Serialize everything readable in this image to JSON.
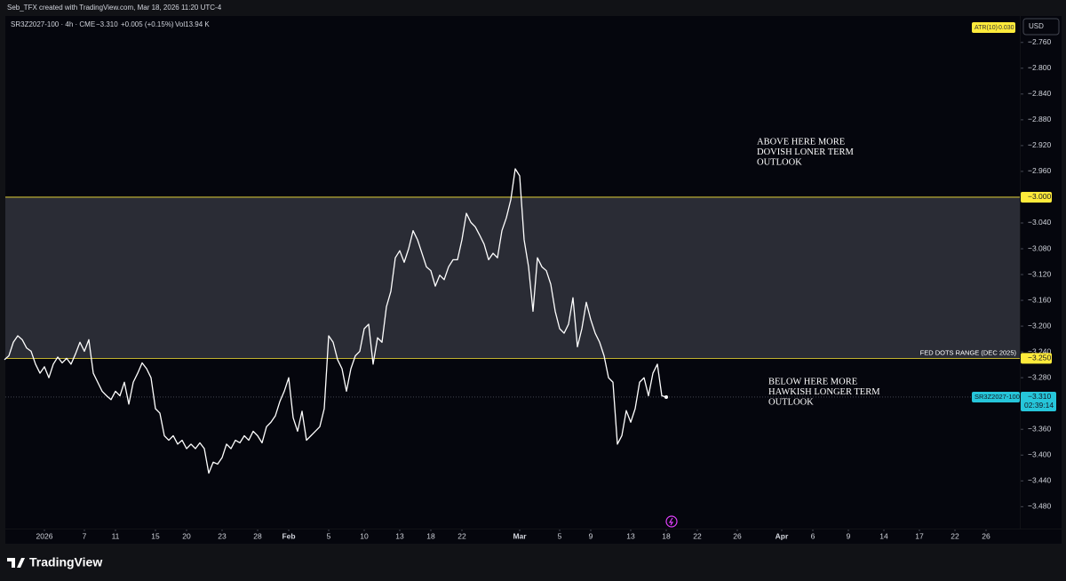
{
  "header": {
    "credit": "Seb_TFX created with TradingView.com, Mar 18, 2026 11:20 UTC-4",
    "brand": "TradingView"
  },
  "chart_data": {
    "type": "line",
    "symbol_info": "SR3Z2027-100 · 4h · CME",
    "last": "−3.310",
    "change": "+0.005 (+0.15%)",
    "volume": "Vol13.94 K",
    "indicator": "ATR(10)",
    "indicator_value": "0.030",
    "currency": "USD",
    "series": [
      {
        "name": "SR3Z2027-100",
        "color": "#ffffff",
        "values": [
          -3.252,
          -3.246,
          -3.225,
          -3.215,
          -3.221,
          -3.234,
          -3.239,
          -3.259,
          -3.273,
          -3.263,
          -3.28,
          -3.259,
          -3.248,
          -3.257,
          -3.25,
          -3.259,
          -3.243,
          -3.225,
          -3.239,
          -3.221,
          -3.273,
          -3.287,
          -3.301,
          -3.308,
          -3.314,
          -3.301,
          -3.308,
          -3.287,
          -3.321,
          -3.287,
          -3.273,
          -3.257,
          -3.266,
          -3.28,
          -3.328,
          -3.335,
          -3.37,
          -3.377,
          -3.37,
          -3.383,
          -3.377,
          -3.39,
          -3.383,
          -3.39,
          -3.381,
          -3.39,
          -3.428,
          -3.411,
          -3.414,
          -3.404,
          -3.383,
          -3.39,
          -3.377,
          -3.381,
          -3.37,
          -3.377,
          -3.363,
          -3.37,
          -3.381,
          -3.356,
          -3.349,
          -3.339,
          -3.317,
          -3.301,
          -3.28,
          -3.342,
          -3.363,
          -3.332,
          -3.377,
          -3.37,
          -3.363,
          -3.356,
          -3.328,
          -3.215,
          -3.225,
          -3.252,
          -3.266,
          -3.301,
          -3.266,
          -3.246,
          -3.239,
          -3.204,
          -3.197,
          -3.259,
          -3.218,
          -3.225,
          -3.17,
          -3.146,
          -3.094,
          -3.083,
          -3.101,
          -3.08,
          -3.052,
          -3.066,
          -3.087,
          -3.108,
          -3.114,
          -3.138,
          -3.121,
          -3.128,
          -3.108,
          -3.097,
          -3.097,
          -3.066,
          -3.025,
          -3.039,
          -3.046,
          -3.059,
          -3.073,
          -3.097,
          -3.087,
          -3.094,
          -3.052,
          -3.032,
          -3.004,
          -2.956,
          -2.967,
          -3.066,
          -3.108,
          -3.177,
          -3.094,
          -3.108,
          -3.114,
          -3.135,
          -3.177,
          -3.204,
          -3.211,
          -3.197,
          -3.156,
          -3.232,
          -3.204,
          -3.163,
          -3.19,
          -3.211,
          -3.225,
          -3.246,
          -3.28,
          -3.287,
          -3.383,
          -3.37,
          -3.331,
          -3.349,
          -3.328,
          -3.287,
          -3.28,
          -3.308,
          -3.273,
          -3.259,
          -3.308,
          -3.31
        ]
      }
    ],
    "current": {
      "value": -3.31,
      "label": "−3.310",
      "countdown": "02:39:14"
    },
    "levels": [
      {
        "value": -3.0,
        "label": "−3.000",
        "color": "#ffeb3b"
      },
      {
        "value": -3.25,
        "label": "−3.250",
        "color": "#ffeb3b",
        "text": "FED DOTS RANGE (DEC 2025)"
      }
    ],
    "band_color": "#2a2c35",
    "annotations": [
      {
        "lines": [
          "ABOVE HERE MORE",
          "DOVISH LONER TERM",
          "OUTLOOK"
        ]
      },
      {
        "lines": [
          "BELOW HERE MORE",
          "HAWKISH LONGER TERM",
          "OUTLOOK"
        ]
      }
    ],
    "xlim": [
      0,
      228.6
    ],
    "xticks": [
      {
        "value": 9,
        "label": "2026"
      },
      {
        "value": 18,
        "label": "7"
      },
      {
        "value": 25,
        "label": "11"
      },
      {
        "value": 34,
        "label": "15"
      },
      {
        "value": 41,
        "label": "20"
      },
      {
        "value": 49,
        "label": "23"
      },
      {
        "value": 57,
        "label": "28"
      },
      {
        "value": 64,
        "label": "Feb"
      },
      {
        "value": 73,
        "label": "5"
      },
      {
        "value": 81,
        "label": "10"
      },
      {
        "value": 89,
        "label": "13"
      },
      {
        "value": 96,
        "label": "18"
      },
      {
        "value": 103,
        "label": "22"
      },
      {
        "value": 116,
        "label": "Mar"
      },
      {
        "value": 125,
        "label": "5"
      },
      {
        "value": 132,
        "label": "9"
      },
      {
        "value": 141,
        "label": "13"
      },
      {
        "value": 149,
        "label": "18"
      },
      {
        "value": 156,
        "label": "22"
      },
      {
        "value": 165,
        "label": "26"
      },
      {
        "value": 175,
        "label": "Apr"
      },
      {
        "value": 182,
        "label": "6"
      },
      {
        "value": 190,
        "label": "9"
      },
      {
        "value": 198,
        "label": "14"
      },
      {
        "value": 206,
        "label": "17"
      },
      {
        "value": 214,
        "label": "22"
      },
      {
        "value": 221,
        "label": "26"
      }
    ],
    "ylim": [
      -3.514,
      -2.719
    ],
    "yticks": [
      {
        "value": -2.76,
        "label": "−2.760"
      },
      {
        "value": -2.8,
        "label": "−2.800"
      },
      {
        "value": -2.84,
        "label": "−2.840"
      },
      {
        "value": -2.88,
        "label": "−2.880"
      },
      {
        "value": -2.92,
        "label": "−2.920"
      },
      {
        "value": -2.96,
        "label": "−2.960"
      },
      {
        "value": -3.04,
        "label": "−3.040"
      },
      {
        "value": -3.08,
        "label": "−3.080"
      },
      {
        "value": -3.12,
        "label": "−3.120"
      },
      {
        "value": -3.16,
        "label": "−3.160"
      },
      {
        "value": -3.2,
        "label": "−3.200"
      },
      {
        "value": -3.24,
        "label": "−3.240"
      },
      {
        "value": -3.28,
        "label": "−3.280"
      },
      {
        "value": -3.36,
        "label": "−3.360"
      },
      {
        "value": -3.4,
        "label": "−3.400"
      },
      {
        "value": -3.44,
        "label": "−3.440"
      },
      {
        "value": -3.48,
        "label": "−3.480"
      }
    ],
    "grid": false
  }
}
